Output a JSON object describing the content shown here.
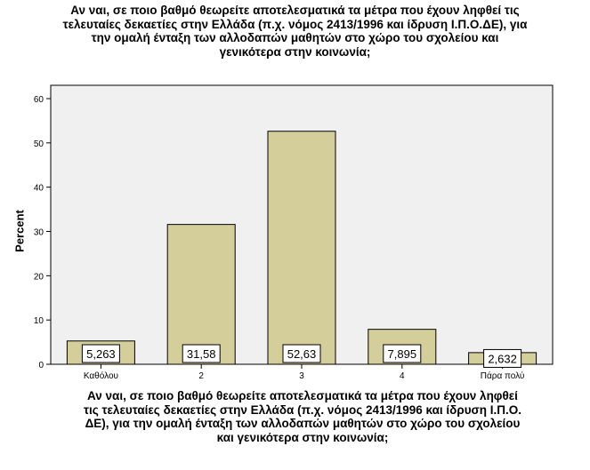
{
  "chart_data": {
    "type": "bar",
    "title": "Αν ναι, σε ποιο βαθμό θεωρείτε αποτελεσματικά τα μέτρα που έχουν ληφθεί τις\nτελευταίες δεκαετίες στην Ελλάδα (π.χ. νόμος 2413/1996 και ίδρυση Ι.Π.Ο.ΔΕ), για\nτην ομαλή ένταξη των αλλοδαπών μαθητών στο χώρο του σχολείου και\nγενικότερα στην κοινωνία;",
    "xlabel": "Αν ναι, σε ποιο βαθμό θεωρείτε αποτελεσματικά τα μέτρα που έχουν ληφθεί\nτις τελευταίες δεκαετίες στην Ελλάδα (π.χ. νόμος 2413/1996 και ίδρυση Ι.Π.Ο.\nΔΕ), για την ομαλή ένταξη των αλλοδαπών μαθητών στο χώρο του σχολείου\nκαι γενικότερα στην κοινωνία;",
    "ylabel": "Percent",
    "categories": [
      "Καθόλου",
      "2",
      "3",
      "4",
      "Πάρα πολύ"
    ],
    "values": [
      5.263,
      31.58,
      52.63,
      7.895,
      2.632
    ],
    "data_labels": [
      "5,263",
      "31,58",
      "52,63",
      "7,895",
      "2,632"
    ],
    "ylim": [
      0,
      60
    ],
    "yticks": [
      0,
      10,
      20,
      30,
      40,
      50,
      60
    ],
    "grid": false,
    "colors": {
      "bar_fill": "#d4ce9b",
      "bar_stroke": "#000000",
      "plot_bg": "#f0f0f0"
    }
  }
}
